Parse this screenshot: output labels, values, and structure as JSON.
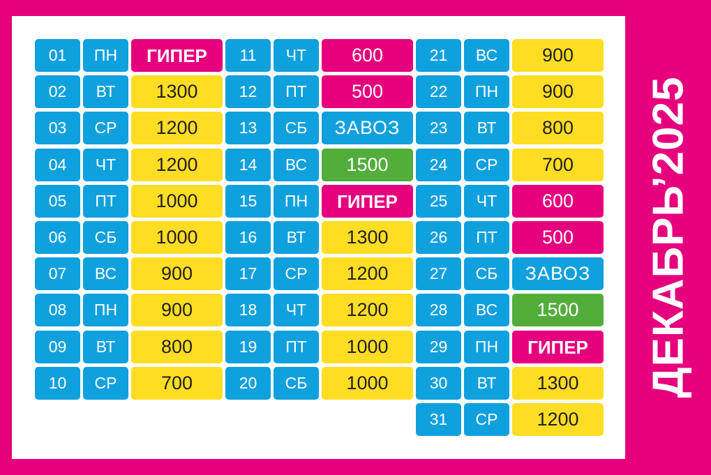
{
  "title": "ДЕКАБРЬ’2025",
  "colors": {
    "background": "#e6007e",
    "blue": "#0fa0de",
    "yellow": "#fedd23",
    "magenta": "#e6007e",
    "green": "#53ad3b"
  },
  "columns": [
    [
      {
        "date": "01",
        "day": "ПН",
        "value": "ГИПЕР",
        "type": "giper"
      },
      {
        "date": "02",
        "day": "ВТ",
        "value": "1300",
        "type": "yellow"
      },
      {
        "date": "03",
        "day": "СР",
        "value": "1200",
        "type": "yellow"
      },
      {
        "date": "04",
        "day": "ЧТ",
        "value": "1200",
        "type": "yellow"
      },
      {
        "date": "05",
        "day": "ПТ",
        "value": "1000",
        "type": "yellow"
      },
      {
        "date": "06",
        "day": "СБ",
        "value": "1000",
        "type": "yellow"
      },
      {
        "date": "07",
        "day": "ВС",
        "value": "900",
        "type": "yellow"
      },
      {
        "date": "08",
        "day": "ПН",
        "value": "900",
        "type": "yellow"
      },
      {
        "date": "09",
        "day": "ВТ",
        "value": "800",
        "type": "yellow"
      },
      {
        "date": "10",
        "day": "СР",
        "value": "700",
        "type": "yellow"
      }
    ],
    [
      {
        "date": "11",
        "day": "ЧТ",
        "value": "600",
        "type": "magenta"
      },
      {
        "date": "12",
        "day": "ПТ",
        "value": "500",
        "type": "magenta"
      },
      {
        "date": "13",
        "day": "СБ",
        "value": "ЗАВОЗ",
        "type": "zavoz"
      },
      {
        "date": "14",
        "day": "ВС",
        "value": "1500",
        "type": "green"
      },
      {
        "date": "15",
        "day": "ПН",
        "value": "ГИПЕР",
        "type": "giper"
      },
      {
        "date": "16",
        "day": "ВТ",
        "value": "1300",
        "type": "yellow"
      },
      {
        "date": "17",
        "day": "СР",
        "value": "1200",
        "type": "yellow"
      },
      {
        "date": "18",
        "day": "ЧТ",
        "value": "1200",
        "type": "yellow"
      },
      {
        "date": "19",
        "day": "ПТ",
        "value": "1000",
        "type": "yellow"
      },
      {
        "date": "20",
        "day": "СБ",
        "value": "1000",
        "type": "yellow"
      }
    ],
    [
      {
        "date": "21",
        "day": "ВС",
        "value": "900",
        "type": "yellow"
      },
      {
        "date": "22",
        "day": "ПН",
        "value": "900",
        "type": "yellow"
      },
      {
        "date": "23",
        "day": "ВТ",
        "value": "800",
        "type": "yellow"
      },
      {
        "date": "24",
        "day": "СР",
        "value": "700",
        "type": "yellow"
      },
      {
        "date": "25",
        "day": "ЧТ",
        "value": "600",
        "type": "magenta"
      },
      {
        "date": "26",
        "day": "ПТ",
        "value": "500",
        "type": "magenta"
      },
      {
        "date": "27",
        "day": "СБ",
        "value": "ЗАВОЗ",
        "type": "zavoz"
      },
      {
        "date": "28",
        "day": "ВС",
        "value": "1500",
        "type": "green"
      },
      {
        "date": "29",
        "day": "ПН",
        "value": "ГИПЕР",
        "type": "giper"
      },
      {
        "date": "30",
        "day": "ВТ",
        "value": "1300",
        "type": "yellow"
      },
      {
        "date": "31",
        "day": "СР",
        "value": "1200",
        "type": "yellow"
      }
    ]
  ]
}
